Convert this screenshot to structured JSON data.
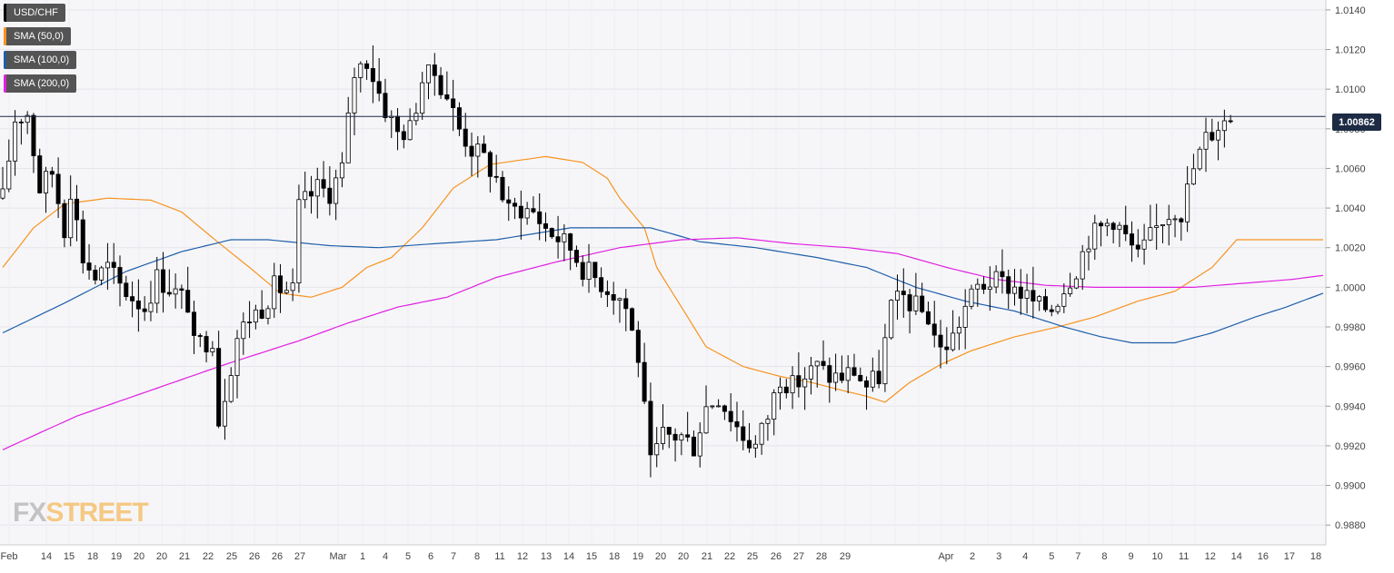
{
  "legend": [
    {
      "label": "USD/CHF",
      "color": "#000000"
    },
    {
      "label": "SMA (50,0)",
      "color": "#f7931e"
    },
    {
      "label": "SMA (100,0)",
      "color": "#1f5fa8"
    },
    {
      "label": "SMA (200,0)",
      "color": "#e020e0"
    }
  ],
  "logo": {
    "fx": "FX",
    "street": "STREET"
  },
  "current_price_label": "1.00862",
  "chart_data": {
    "type": "candlestick",
    "symbol": "USD/CHF",
    "ylim": [
      0.987,
      1.0145
    ],
    "y_ticks": [
      "1.0140",
      "1.0120",
      "1.0100",
      "1.0080",
      "1.0060",
      "1.0040",
      "1.0020",
      "1.0000",
      "0.9980",
      "0.9960",
      "0.9940",
      "0.9920",
      "0.9900",
      "0.9880"
    ],
    "x_ticks": [
      "Feb",
      "14",
      "15",
      "18",
      "19",
      "20",
      "20",
      "21",
      "22",
      "25",
      "26",
      "26",
      "27",
      "Mar",
      "1",
      "4",
      "5",
      "6",
      "7",
      "8",
      "11",
      "12",
      "13",
      "14",
      "15",
      "18",
      "19",
      "20",
      "20",
      "21",
      "22",
      "25",
      "26",
      "27",
      "28",
      "29",
      "Apr",
      "2",
      "3",
      "4",
      "5",
      "7",
      "8",
      "9",
      "10",
      "11",
      "12",
      "14",
      "16",
      "17",
      "18"
    ],
    "current_price": 1.00862,
    "grid": true,
    "legend_position": "top-left",
    "series": [
      {
        "name": "USD/CHF",
        "kind": "candles",
        "color": "#000000",
        "anchors": [
          [
            0,
            1.0045
          ],
          [
            2,
            1.0085
          ],
          [
            4,
            1.0088
          ],
          [
            6,
            1.005
          ],
          [
            8,
            1.0058
          ],
          [
            10,
            1.003
          ],
          [
            11,
            1.005
          ],
          [
            13,
            1.0015
          ],
          [
            15,
            1.0005
          ],
          [
            17,
            1.001
          ],
          [
            19,
            1.0001
          ],
          [
            21,
            0.9995
          ],
          [
            23,
            0.999
          ],
          [
            25,
            1.0005
          ],
          [
            27,
            1.0
          ],
          [
            30,
            0.9992
          ],
          [
            31,
            0.997
          ],
          [
            34,
            0.9975
          ],
          [
            35,
            0.9933
          ],
          [
            38,
            0.9975
          ],
          [
            40,
            0.9985
          ],
          [
            42,
            0.999
          ],
          [
            44,
            1.0
          ],
          [
            47,
            0.9998
          ],
          [
            48,
            1.004
          ],
          [
            51,
            1.005
          ],
          [
            53,
            1.0048
          ],
          [
            55,
            1.006
          ],
          [
            57,
            1.0108
          ],
          [
            59,
            1.0115
          ],
          [
            62,
            1.009
          ],
          [
            64,
            1.0078
          ],
          [
            66,
            1.008
          ],
          [
            68,
            1.0105
          ],
          [
            70,
            1.0108
          ],
          [
            72,
            1.0097
          ],
          [
            74,
            1.008
          ],
          [
            76,
            1.007
          ],
          [
            78,
            1.0065
          ],
          [
            80,
            1.0055
          ],
          [
            82,
            1.0038
          ],
          [
            84,
            1.004
          ],
          [
            86,
            1.0038
          ],
          [
            88,
            1.003
          ],
          [
            90,
            1.0025
          ],
          [
            92,
            1.002
          ],
          [
            94,
            1.001
          ],
          [
            96,
            1.0005
          ],
          [
            98,
            1.0
          ],
          [
            100,
            0.9995
          ],
          [
            101,
            0.999
          ],
          [
            103,
            0.9965
          ],
          [
            105,
            0.991
          ],
          [
            107,
            0.9925
          ],
          [
            110,
            0.9925
          ],
          [
            112,
            0.992
          ],
          [
            114,
            0.994
          ],
          [
            116,
            0.9945
          ],
          [
            118,
            0.9935
          ],
          [
            120,
            0.9925
          ],
          [
            122,
            0.992
          ],
          [
            124,
            0.9935
          ],
          [
            126,
            0.9955
          ],
          [
            128,
            0.995
          ],
          [
            130,
            0.9955
          ],
          [
            132,
            0.996
          ],
          [
            134,
            0.9955
          ],
          [
            136,
            0.9955
          ],
          [
            138,
            0.9958
          ],
          [
            140,
            0.995
          ],
          [
            142,
            0.9955
          ],
          [
            144,
            0.999
          ],
          [
            146,
            0.9995
          ],
          [
            148,
            0.999
          ],
          [
            150,
            0.9985
          ],
          [
            152,
            0.9968
          ],
          [
            154,
            0.9975
          ],
          [
            156,
            0.999
          ],
          [
            158,
            1.0
          ],
          [
            160,
            1.0003
          ],
          [
            162,
            1.0002
          ],
          [
            164,
            1.0
          ],
          [
            166,
            0.9995
          ],
          [
            168,
            0.999
          ],
          [
            170,
            0.999
          ],
          [
            172,
            1.0
          ],
          [
            174,
            1.001
          ],
          [
            176,
            1.0025
          ],
          [
            178,
            1.003
          ],
          [
            180,
            1.0035
          ],
          [
            182,
            1.0025
          ],
          [
            184,
            1.0015
          ],
          [
            186,
            1.0025
          ],
          [
            188,
            1.0035
          ],
          [
            190,
            1.004
          ],
          [
            191,
            1.0038
          ],
          [
            193,
            1.006
          ],
          [
            195,
            1.0075
          ],
          [
            197,
            1.0082
          ],
          [
            199,
            1.0086
          ]
        ]
      },
      {
        "name": "SMA (50,0)",
        "kind": "line",
        "color": "#f7931e",
        "anchors": [
          [
            0,
            1.001
          ],
          [
            5,
            1.003
          ],
          [
            10,
            1.0042
          ],
          [
            17,
            1.0045
          ],
          [
            24,
            1.0044
          ],
          [
            29,
            1.0038
          ],
          [
            34,
            1.0025
          ],
          [
            40,
            1.001
          ],
          [
            45,
            0.9997
          ],
          [
            50,
            0.9995
          ],
          [
            55,
            1.0
          ],
          [
            59,
            1.001
          ],
          [
            63,
            1.0015
          ],
          [
            68,
            1.003
          ],
          [
            73,
            1.005
          ],
          [
            79,
            1.0062
          ],
          [
            88,
            1.0066
          ],
          [
            94,
            1.0063
          ],
          [
            98,
            1.0055
          ],
          [
            100,
            1.0045
          ],
          [
            104,
            1.003
          ],
          [
            106,
            1.001
          ],
          [
            110,
            0.999
          ],
          [
            114,
            0.997
          ],
          [
            120,
            0.996
          ],
          [
            126,
            0.9955
          ],
          [
            131,
            0.9952
          ],
          [
            136,
            0.9948
          ],
          [
            140,
            0.9945
          ],
          [
            143,
            0.9942
          ],
          [
            147,
            0.9952
          ],
          [
            152,
            0.9961
          ],
          [
            157,
            0.9968
          ],
          [
            164,
            0.9975
          ],
          [
            171,
            0.998
          ],
          [
            177,
            0.9985
          ],
          [
            184,
            0.9993
          ],
          [
            190,
            0.9998
          ],
          [
            196,
            1.001
          ],
          [
            200,
            1.0024
          ]
        ]
      },
      {
        "name": "SMA (100,0)",
        "kind": "line",
        "color": "#1f5fa8",
        "anchors": [
          [
            0,
            0.9977
          ],
          [
            10,
            0.9992
          ],
          [
            20,
            1.0008
          ],
          [
            29,
            1.0018
          ],
          [
            37,
            1.0024
          ],
          [
            43,
            1.0024
          ],
          [
            53,
            1.0021
          ],
          [
            61,
            1.002
          ],
          [
            70,
            1.0022
          ],
          [
            80,
            1.0024
          ],
          [
            92,
            1.003
          ],
          [
            105,
            1.003
          ],
          [
            113,
            1.0023
          ],
          [
            122,
            1.002
          ],
          [
            132,
            1.0015
          ],
          [
            140,
            1.001
          ],
          [
            148,
            1.0
          ],
          [
            156,
            0.9993
          ],
          [
            164,
            0.9988
          ],
          [
            172,
            0.998
          ],
          [
            178,
            0.9975
          ],
          [
            183,
            0.9972
          ],
          [
            190,
            0.9972
          ],
          [
            196,
            0.9977
          ],
          [
            203,
            0.9985
          ],
          [
            208,
            0.999
          ],
          [
            214,
            0.9997
          ]
        ]
      },
      {
        "name": "SMA (200,0)",
        "kind": "line",
        "color": "#e020e0",
        "anchors": [
          [
            0,
            0.9918
          ],
          [
            12,
            0.9935
          ],
          [
            24,
            0.9948
          ],
          [
            36,
            0.9961
          ],
          [
            48,
            0.9973
          ],
          [
            56,
            0.9982
          ],
          [
            64,
            0.999
          ],
          [
            72,
            0.9995
          ],
          [
            80,
            1.0005
          ],
          [
            90,
            1.0013
          ],
          [
            100,
            1.002
          ],
          [
            110,
            1.0024
          ],
          [
            119,
            1.0025
          ],
          [
            128,
            1.0022
          ],
          [
            137,
            1.002
          ],
          [
            145,
            1.0017
          ],
          [
            153,
            1.001
          ],
          [
            161,
            1.0004
          ],
          [
            169,
            1.0001
          ],
          [
            177,
            1.0
          ],
          [
            185,
            1.0
          ],
          [
            193,
            1.0
          ],
          [
            201,
            1.0002
          ],
          [
            209,
            1.0004
          ],
          [
            214,
            1.0006
          ]
        ]
      }
    ]
  }
}
